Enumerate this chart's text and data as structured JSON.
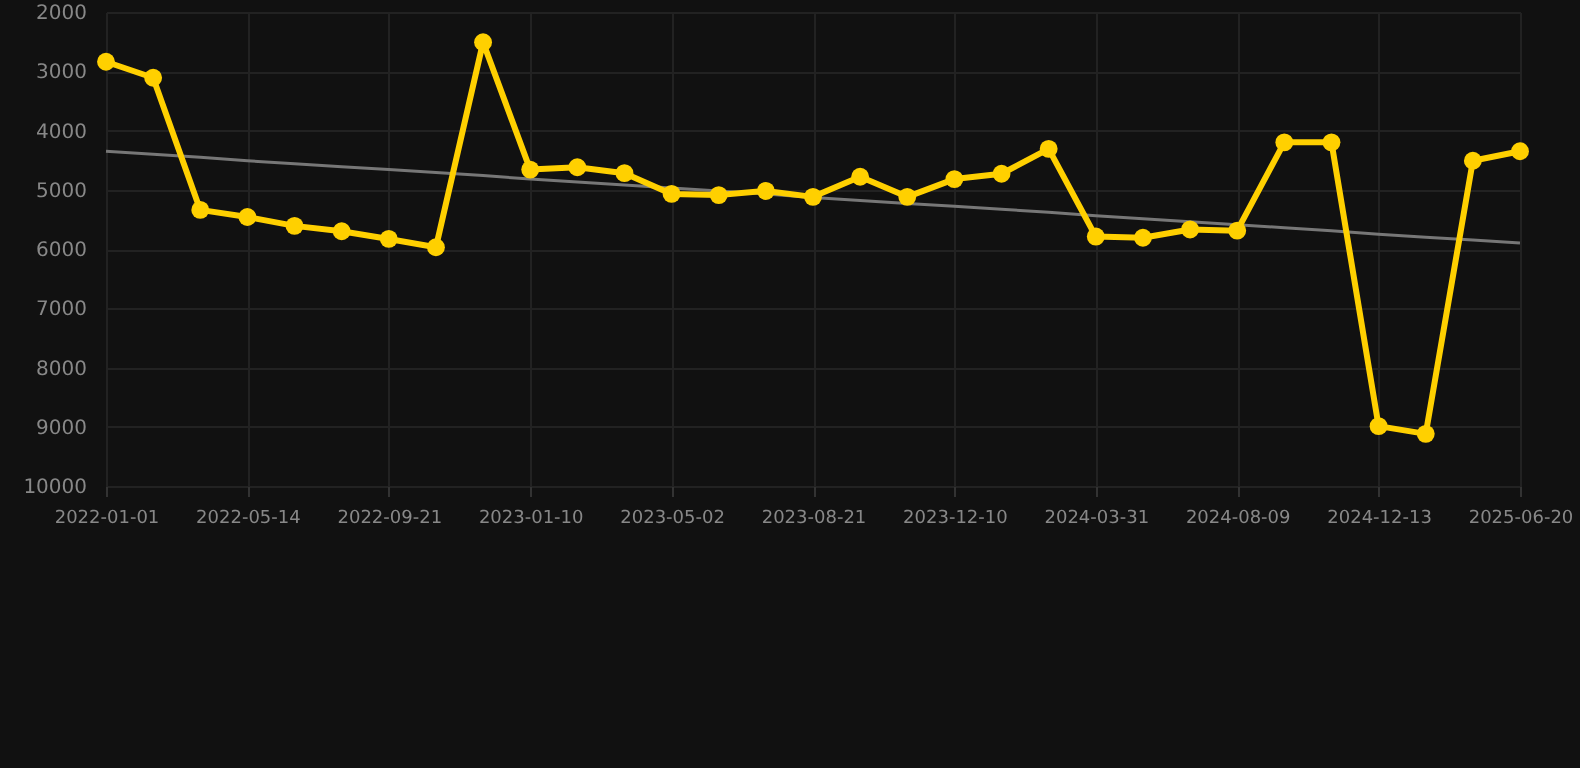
{
  "chart_data": {
    "type": "line",
    "categories": [
      "2022-01-01",
      null,
      null,
      "2022-05-14",
      null,
      null,
      "2022-09-21",
      null,
      null,
      "2023-01-10",
      null,
      null,
      "2023-05-02",
      null,
      null,
      "2023-08-21",
      null,
      null,
      "2023-12-10",
      null,
      null,
      "2024-03-31",
      null,
      null,
      "2024-08-09",
      null,
      null,
      "2024-12-13",
      null,
      null,
      "2025-06-20"
    ],
    "series": [
      {
        "color": "#ffd000",
        "marker": "circle",
        "values": [
          2840,
          3110,
          5340,
          5460,
          5610,
          5700,
          5830,
          5970,
          2510,
          4660,
          4620,
          4720,
          5070,
          5090,
          5020,
          5120,
          4780,
          5120,
          4820,
          4730,
          4310,
          5790,
          5810,
          5670,
          5690,
          4200,
          4200,
          8990,
          9120,
          4510,
          4350
        ]
      },
      {
        "type": "line",
        "color": "#777777",
        "marker": "none",
        "values": [
          4350,
          4400,
          4450,
          4510,
          4560,
          4610,
          4660,
          4710,
          4760,
          4820,
          4870,
          4920,
          4970,
          5020,
          5070,
          5130,
          5180,
          5230,
          5280,
          5330,
          5380,
          5440,
          5490,
          5540,
          5590,
          5640,
          5690,
          5750,
          5800,
          5850,
          5900
        ]
      }
    ],
    "ylim": [
      10000,
      2000
    ],
    "yticks": [
      2000,
      3000,
      4000,
      5000,
      6000,
      7000,
      8000,
      9000,
      10000
    ],
    "grid": true
  }
}
